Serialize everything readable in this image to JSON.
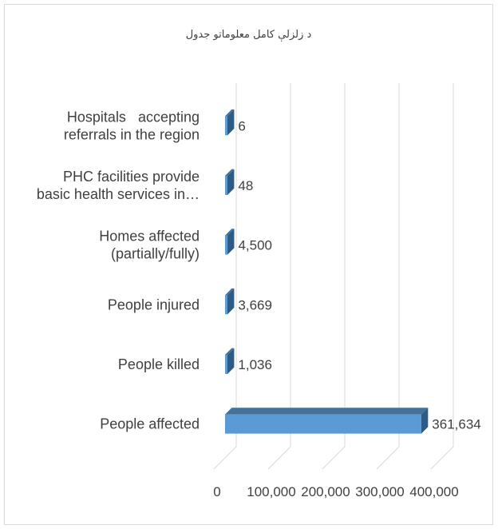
{
  "chart_data": {
    "type": "bar",
    "orientation": "horizontal",
    "style": "3d-clustered-bar",
    "title": "د زلزلې کامل معلوماتو جدول",
    "categories": [
      "People affected",
      "People killed",
      "People injured",
      "Homes affected (partially/fully)",
      "PHC facilities provide basic health services in…",
      "Hospitals   accepting referrals in the region"
    ],
    "category_lines": [
      [
        "People affected"
      ],
      [
        "People killed"
      ],
      [
        "People injured"
      ],
      [
        "Homes affected",
        "(partially/fully)"
      ],
      [
        "PHC facilities provide",
        "basic health services in…"
      ],
      [
        "Hospitals   accepting",
        "referrals in the region"
      ]
    ],
    "values": [
      361634,
      1036,
      3669,
      4500,
      48,
      6
    ],
    "value_labels": [
      "361,634",
      "1,036",
      "3,669",
      "4,500",
      "48",
      "6"
    ],
    "xlim": [
      0,
      400000
    ],
    "xticks": [
      0,
      100000,
      200000,
      300000,
      400000
    ],
    "xtick_labels": [
      "0",
      "100,000",
      "200,000",
      "300,000",
      "400,000"
    ],
    "grid": true,
    "legend": "none",
    "colors": {
      "bar_front": "#5b9bd5",
      "bar_top": "#41719c",
      "bar_side": "#2e5b86",
      "grid": "#d9d9d9",
      "text": "#404040"
    }
  }
}
